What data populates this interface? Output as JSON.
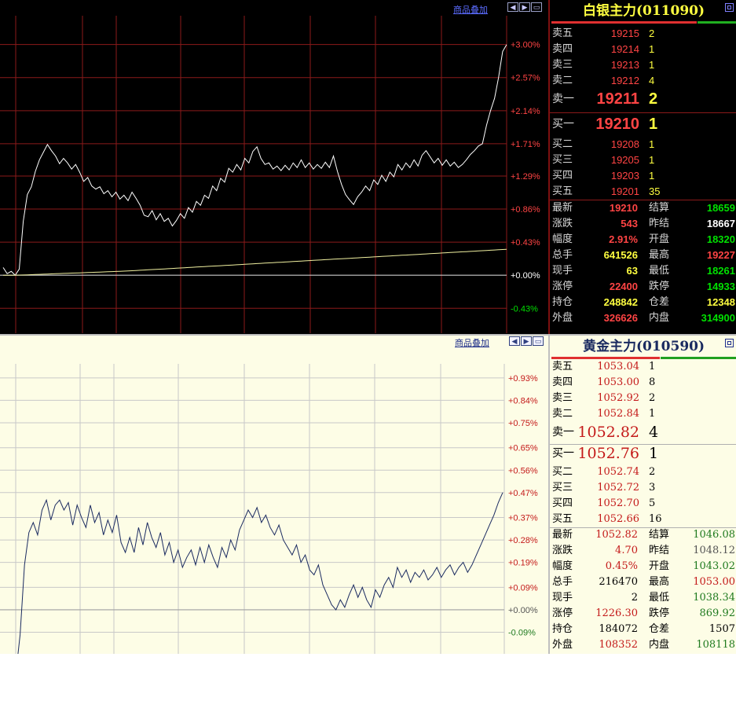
{
  "silver": {
    "overlay_label": "商品叠加",
    "nav_icons": [
      "arrow-left-icon",
      "arrow-right-icon",
      "window-icon"
    ],
    "quote": {
      "title": "白银主力(011090)",
      "colors": {
        "background": "#000000",
        "title": "#ffff40",
        "up": "#ff4444",
        "down": "#00ff00",
        "neutral": "#ffffff",
        "volume": "#ffff40"
      },
      "asks": [
        {
          "label": "卖五",
          "price": "19215",
          "volume": "2"
        },
        {
          "label": "卖四",
          "price": "19214",
          "volume": "1"
        },
        {
          "label": "卖三",
          "price": "19213",
          "volume": "1"
        },
        {
          "label": "卖二",
          "price": "19212",
          "volume": "4"
        },
        {
          "label": "卖一",
          "price": "19211",
          "volume": "2"
        }
      ],
      "bids": [
        {
          "label": "买一",
          "price": "19210",
          "volume": "1"
        },
        {
          "label": "买二",
          "price": "19208",
          "volume": "1"
        },
        {
          "label": "买三",
          "price": "19205",
          "volume": "1"
        },
        {
          "label": "买四",
          "price": "19203",
          "volume": "1"
        },
        {
          "label": "买五",
          "price": "19201",
          "volume": "35"
        }
      ],
      "stats": [
        {
          "l1": "最新",
          "v1": "19210",
          "c1": "#ff4444",
          "l2": "结算",
          "v2": "18659",
          "c2": "#00e000"
        },
        {
          "l1": "涨跌",
          "v1": "543",
          "c1": "#ff4444",
          "l2": "昨结",
          "v2": "18667",
          "c2": "#ffffff"
        },
        {
          "l1": "幅度",
          "v1": "2.91%",
          "c1": "#ff4444",
          "l2": "开盘",
          "v2": "18320",
          "c2": "#00e000"
        },
        {
          "l1": "总手",
          "v1": "641526",
          "c1": "#ffff40",
          "l2": "最高",
          "v2": "19227",
          "c2": "#ff4444"
        },
        {
          "l1": "现手",
          "v1": "63",
          "c1": "#ffff40",
          "l2": "最低",
          "v2": "18261",
          "c2": "#00e000"
        },
        {
          "l1": "涨停",
          "v1": "22400",
          "c1": "#ff4444",
          "l2": "跌停",
          "v2": "14933",
          "c2": "#00e000"
        },
        {
          "l1": "持仓",
          "v1": "248842",
          "c1": "#ffff40",
          "l2": "仓差",
          "v2": "12348",
          "c2": "#ffff40"
        },
        {
          "l1": "外盘",
          "v1": "326626",
          "c1": "#ff4444",
          "l2": "内盘",
          "v2": "314900",
          "c2": "#00e000"
        }
      ]
    },
    "chart_data": {
      "type": "line",
      "y_unit": "percent change",
      "y_tick_labels": [
        "+3.00%",
        "+2.57%",
        "+2.14%",
        "+1.71%",
        "+1.29%",
        "+0.86%",
        "+0.43%",
        "+0.00%",
        "-0.43%"
      ],
      "ylim": [
        -0.55,
        3.15
      ],
      "grid": true,
      "series": [
        {
          "values": [
            0.1,
            0.02,
            0.05,
            0.0,
            0.08,
            0.7,
            1.05,
            1.15,
            1.35,
            1.5,
            1.6,
            1.7,
            1.62,
            1.55,
            1.45,
            1.52,
            1.46,
            1.38,
            1.44,
            1.34,
            1.22,
            1.27,
            1.16,
            1.12,
            1.15,
            1.06,
            1.1,
            1.02,
            1.08,
            0.99,
            1.04,
            0.97,
            1.08,
            1.0,
            0.91,
            0.78,
            0.76,
            0.84,
            0.72,
            0.8,
            0.7,
            0.74,
            0.64,
            0.71,
            0.8,
            0.74,
            0.88,
            0.82,
            0.96,
            0.91,
            1.04,
            1.0,
            1.16,
            1.1,
            1.26,
            1.21,
            1.39,
            1.34,
            1.44,
            1.37,
            1.52,
            1.46,
            1.61,
            1.67,
            1.52,
            1.44,
            1.46,
            1.38,
            1.42,
            1.36,
            1.43,
            1.37,
            1.46,
            1.4,
            1.5,
            1.4,
            1.46,
            1.38,
            1.44,
            1.39,
            1.47,
            1.4,
            1.55,
            1.35,
            1.18,
            1.05,
            0.98,
            0.92,
            1.02,
            1.08,
            1.16,
            1.1,
            1.24,
            1.18,
            1.3,
            1.22,
            1.34,
            1.28,
            1.44,
            1.37,
            1.46,
            1.4,
            1.5,
            1.42,
            1.56,
            1.62,
            1.54,
            1.46,
            1.52,
            1.43,
            1.5,
            1.42,
            1.47,
            1.4,
            1.44,
            1.5,
            1.57,
            1.62,
            1.68,
            1.71,
            1.95,
            2.14,
            2.3,
            2.57,
            2.91,
            3.0
          ]
        },
        {
          "name": "",
          "color": "#f0f0a0",
          "values": [
            0,
            0,
            0,
            0.001,
            0.002,
            0.003,
            0.005,
            0.007,
            0.009,
            0.011,
            0.013,
            0.015,
            0.017,
            0.019,
            0.021,
            0.023,
            0.025,
            0.027,
            0.029,
            0.031,
            0.033,
            0.035,
            0.037,
            0.039,
            0.041,
            0.043,
            0.045,
            0.047,
            0.049,
            0.051,
            0.053,
            0.055,
            0.058,
            0.061,
            0.064,
            0.067,
            0.07,
            0.073,
            0.076,
            0.079,
            0.082,
            0.085,
            0.088,
            0.091,
            0.094,
            0.097,
            0.1,
            0.103,
            0.106,
            0.109,
            0.112,
            0.115,
            0.118,
            0.121,
            0.124,
            0.127,
            0.13,
            0.133,
            0.136,
            0.139,
            0.142,
            0.145,
            0.148,
            0.151,
            0.154,
            0.157,
            0.16,
            0.163,
            0.166,
            0.169,
            0.172,
            0.175,
            0.178,
            0.181,
            0.184,
            0.187,
            0.19,
            0.193,
            0.196,
            0.199,
            0.202,
            0.205,
            0.208,
            0.211,
            0.214,
            0.217,
            0.22,
            0.223,
            0.226,
            0.229,
            0.232,
            0.235,
            0.238,
            0.241,
            0.244,
            0.247,
            0.25,
            0.253,
            0.256,
            0.259,
            0.262,
            0.265,
            0.268,
            0.271,
            0.274,
            0.277,
            0.28,
            0.283,
            0.286,
            0.289,
            0.292,
            0.295,
            0.298,
            0.301,
            0.304,
            0.307,
            0.31,
            0.313,
            0.316,
            0.319,
            0.322,
            0.325,
            0.328,
            0.331,
            0.334,
            0.337
          ]
        }
      ]
    }
  },
  "gold": {
    "overlay_label": "商品叠加",
    "nav_icons": [
      "arrow-left-icon",
      "arrow-right-icon",
      "window-icon"
    ],
    "quote": {
      "title": "黄金主力(010590)",
      "colors": {
        "background": "#fdfde6",
        "title": "#1a2a60",
        "up": "#c41a1a",
        "down": "#1f7a1f",
        "neutral": "#555555"
      },
      "asks": [
        {
          "label": "卖五",
          "price": "1053.04",
          "volume": "1"
        },
        {
          "label": "卖四",
          "price": "1053.00",
          "volume": "8"
        },
        {
          "label": "卖三",
          "price": "1052.92",
          "volume": "2"
        },
        {
          "label": "卖二",
          "price": "1052.84",
          "volume": "1"
        },
        {
          "label": "卖一",
          "price": "1052.82",
          "volume": "4"
        }
      ],
      "bids": [
        {
          "label": "买一",
          "price": "1052.76",
          "volume": "1"
        },
        {
          "label": "买二",
          "price": "1052.74",
          "volume": "2"
        },
        {
          "label": "买三",
          "price": "1052.72",
          "volume": "3"
        },
        {
          "label": "买四",
          "price": "1052.70",
          "volume": "5"
        },
        {
          "label": "买五",
          "price": "1052.66",
          "volume": "16"
        }
      ],
      "stats": [
        {
          "l1": "最新",
          "v1": "1052.82",
          "c1": "#c41a1a",
          "l2": "结算",
          "v2": "1046.08",
          "c2": "#1f7a1f"
        },
        {
          "l1": "涨跌",
          "v1": "4.70",
          "c1": "#c41a1a",
          "l2": "昨结",
          "v2": "1048.12",
          "c2": "#555555"
        },
        {
          "l1": "幅度",
          "v1": "0.45%",
          "c1": "#c41a1a",
          "l2": "开盘",
          "v2": "1043.02",
          "c2": "#1f7a1f"
        },
        {
          "l1": "总手",
          "v1": "216470",
          "c1": "#000000",
          "l2": "最高",
          "v2": "1053.00",
          "c2": "#c41a1a"
        },
        {
          "l1": "现手",
          "v1": "2",
          "c1": "#000000",
          "l2": "最低",
          "v2": "1038.34",
          "c2": "#1f7a1f"
        },
        {
          "l1": "涨停",
          "v1": "1226.30",
          "c1": "#c41a1a",
          "l2": "跌停",
          "v2": "869.92",
          "c2": "#1f7a1f"
        },
        {
          "l1": "持仓",
          "v1": "184072",
          "c1": "#000000",
          "l2": "仓差",
          "v2": "1507",
          "c2": "#000000"
        },
        {
          "l1": "外盘",
          "v1": "108352",
          "c1": "#c41a1a",
          "l2": "内盘",
          "v2": "108118",
          "c2": "#1f7a1f"
        }
      ]
    },
    "chart_data": {
      "type": "line",
      "y_unit": "percent change",
      "y_tick_labels": [
        "+0.93%",
        "+0.84%",
        "+0.75%",
        "+0.65%",
        "+0.56%",
        "+0.47%",
        "+0.37%",
        "+0.28%",
        "+0.19%",
        "+0.09%",
        "+0.00%",
        "-0.09%"
      ],
      "ylim": [
        -0.12,
        0.98
      ],
      "grid": true,
      "series": [
        {
          "color": "#1a2a60",
          "values": [
            -0.26,
            -0.1,
            0.18,
            0.31,
            0.35,
            0.3,
            0.4,
            0.44,
            0.36,
            0.42,
            0.44,
            0.4,
            0.43,
            0.34,
            0.42,
            0.37,
            0.33,
            0.42,
            0.35,
            0.39,
            0.3,
            0.36,
            0.31,
            0.38,
            0.27,
            0.23,
            0.29,
            0.23,
            0.33,
            0.26,
            0.35,
            0.29,
            0.25,
            0.31,
            0.22,
            0.27,
            0.19,
            0.24,
            0.17,
            0.21,
            0.24,
            0.18,
            0.25,
            0.19,
            0.26,
            0.21,
            0.17,
            0.25,
            0.21,
            0.28,
            0.24,
            0.32,
            0.36,
            0.4,
            0.37,
            0.41,
            0.35,
            0.38,
            0.33,
            0.3,
            0.34,
            0.28,
            0.25,
            0.22,
            0.26,
            0.19,
            0.22,
            0.16,
            0.14,
            0.18,
            0.1,
            0.06,
            0.02,
            0.0,
            0.04,
            0.01,
            0.06,
            0.1,
            0.05,
            0.09,
            0.04,
            0.01,
            0.08,
            0.05,
            0.1,
            0.13,
            0.09,
            0.17,
            0.13,
            0.16,
            0.11,
            0.15,
            0.13,
            0.16,
            0.12,
            0.14,
            0.17,
            0.13,
            0.16,
            0.18,
            0.14,
            0.17,
            0.19,
            0.15,
            0.18,
            0.22,
            0.26,
            0.3,
            0.34,
            0.38,
            0.43,
            0.47
          ]
        }
      ]
    }
  }
}
